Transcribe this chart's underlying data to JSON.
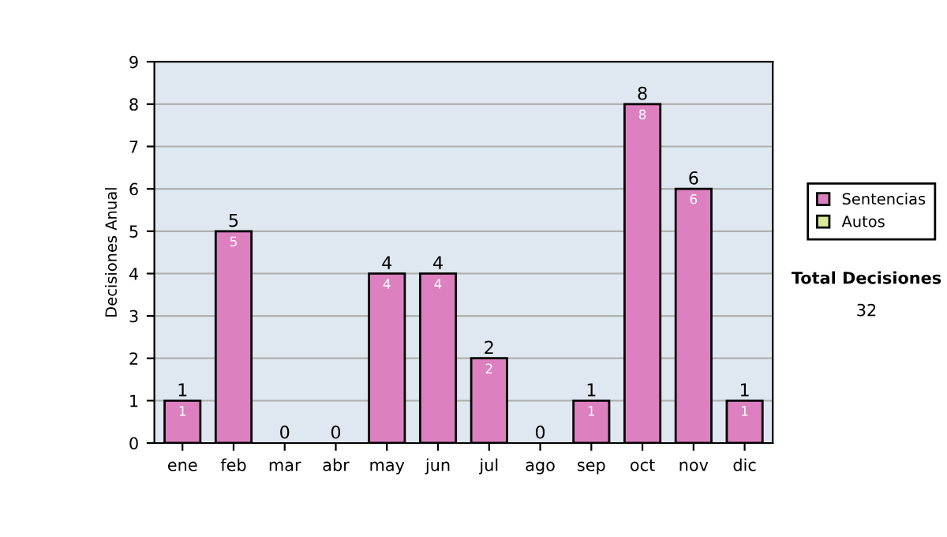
{
  "chart_data": {
    "type": "bar",
    "stacked": true,
    "ylabel": "Decisiones Anual",
    "categories": [
      "ene",
      "feb",
      "mar",
      "abr",
      "may",
      "jun",
      "jul",
      "ago",
      "sep",
      "oct",
      "nov",
      "dic"
    ],
    "series": [
      {
        "name": "Sentencias",
        "color": "#dd80c0",
        "values": [
          1,
          5,
          0,
          0,
          4,
          4,
          2,
          0,
          1,
          8,
          6,
          1
        ],
        "value_labels": [
          "1",
          "5",
          null,
          null,
          "4",
          "4",
          "2",
          null,
          "1",
          "8",
          "6",
          "1"
        ]
      },
      {
        "name": "Autos",
        "color": "#d8ec9c",
        "values": [
          0,
          0,
          0,
          0,
          0,
          0,
          0,
          0,
          0,
          0,
          0,
          0
        ]
      }
    ],
    "totals": [
      "1",
      "5",
      "0",
      "0",
      "4",
      "4",
      "2",
      "0",
      "1",
      "8",
      "6",
      "1"
    ],
    "ylim": [
      0,
      9
    ],
    "yticks": [
      0,
      1,
      2,
      3,
      4,
      5,
      6,
      7,
      8,
      9
    ],
    "grid": "y",
    "legend": "right",
    "annotations": [
      "Total Decisiones",
      "32"
    ]
  }
}
